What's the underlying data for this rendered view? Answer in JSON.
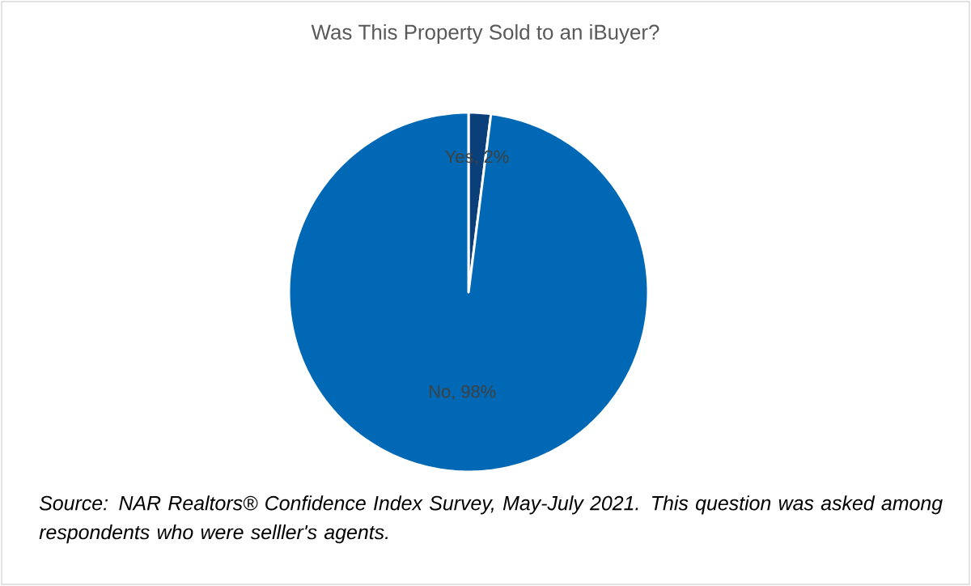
{
  "chart_data": {
    "type": "pie",
    "title": "Was This Property Sold to an iBuyer?",
    "categories": [
      "Yes, 2%",
      "No, 98%"
    ],
    "values": [
      2,
      98
    ],
    "colors": [
      "#0b3f7a",
      "#0068b4"
    ],
    "annotations": [
      "*Source: NAR Realtors® Confidence Index Survey, May-July 2021. This question was asked among respondents who were selller's agents.*"
    ]
  }
}
